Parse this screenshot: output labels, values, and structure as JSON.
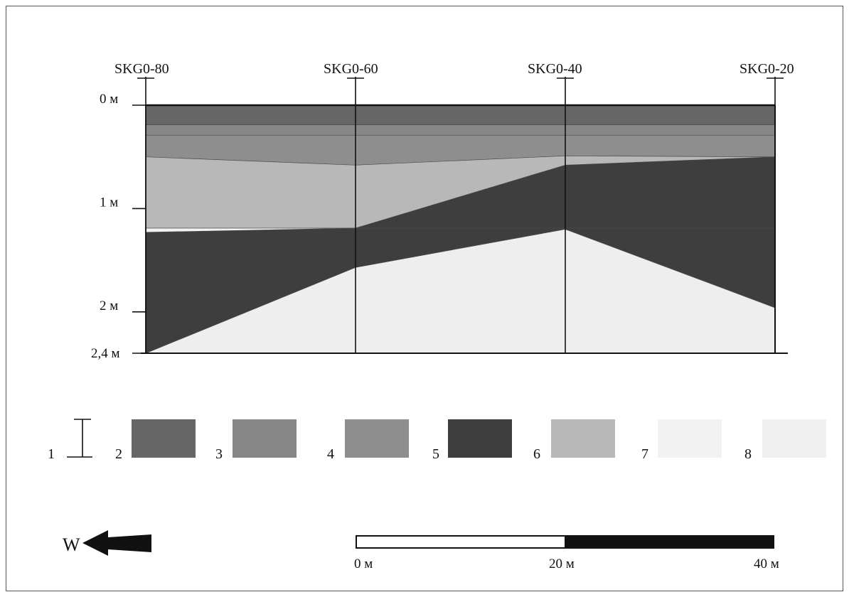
{
  "sections": [
    {
      "id": "skg0-80",
      "label": "SKG0-80"
    },
    {
      "id": "skg0-60",
      "label": "SKG0-60"
    },
    {
      "id": "skg0-40",
      "label": "SKG0-40"
    },
    {
      "id": "skg0-20",
      "label": "SKG0-20"
    }
  ],
  "depth_axis": {
    "max_depth_m": 2.4,
    "ticks": [
      {
        "value": 0,
        "label": "0 м"
      },
      {
        "value": 1,
        "label": "1 м"
      },
      {
        "value": 2,
        "label": "2 м"
      },
      {
        "value": 2.4,
        "label": "2,4 м"
      }
    ]
  },
  "layers": [
    {
      "legend": "2",
      "color": "#666666",
      "top_m": [
        0.0,
        0.0,
        0.0,
        0.0
      ],
      "bottom_m": [
        0.19,
        0.19,
        0.19,
        0.19
      ]
    },
    {
      "legend": "3",
      "color": "#878787",
      "top_m": [
        0.19,
        0.19,
        0.19,
        0.19
      ],
      "bottom_m": [
        0.29,
        0.29,
        0.29,
        0.29
      ]
    },
    {
      "legend": "4",
      "color": "#8e8e8e",
      "top_m": [
        0.29,
        0.29,
        0.29,
        0.29
      ],
      "bottom_m": [
        0.5,
        0.58,
        0.49,
        0.5
      ]
    },
    {
      "legend": "6",
      "color": "#b8b8b8",
      "top_m": [
        0.5,
        0.58,
        0.49,
        0.5
      ],
      "bottom_m": [
        1.19,
        1.19,
        0.58,
        0.5
      ]
    },
    {
      "legend": "8",
      "color": "#f2f2f2",
      "top_m": [
        1.19,
        1.19,
        1.19,
        1.19
      ],
      "bottom_m": [
        1.23,
        1.19,
        1.19,
        1.28
      ]
    },
    {
      "legend": "5",
      "color": "#3e3e3e",
      "top_m": [
        1.23,
        1.19,
        0.58,
        0.5
      ],
      "bottom_m": [
        2.4,
        1.57,
        1.2,
        1.96
      ]
    },
    {
      "legend": "7",
      "color": "#eeeeee",
      "top_m": [
        2.4,
        1.57,
        1.2,
        1.96
      ],
      "bottom_m": [
        2.4,
        2.4,
        2.4,
        2.4
      ]
    }
  ],
  "legend": {
    "items": [
      {
        "num": "1",
        "kind": "bar",
        "color": ""
      },
      {
        "num": "2",
        "kind": "swatch",
        "color": "#666666"
      },
      {
        "num": "3",
        "kind": "swatch",
        "color": "#878787"
      },
      {
        "num": "4",
        "kind": "swatch",
        "color": "#8e8e8e"
      },
      {
        "num": "5",
        "kind": "swatch",
        "color": "#3e3e3e"
      },
      {
        "num": "6",
        "kind": "swatch",
        "color": "#b8b8b8"
      },
      {
        "num": "7",
        "kind": "swatch",
        "color": "#f2f2f2"
      },
      {
        "num": "8",
        "kind": "swatch",
        "color": "#f0f0f0"
      }
    ]
  },
  "direction": {
    "label": "W"
  },
  "scale_bar": {
    "labels": [
      "0 м",
      "20 м",
      "40 м"
    ],
    "segment_colors": [
      "#ffffff",
      "#111111"
    ]
  }
}
